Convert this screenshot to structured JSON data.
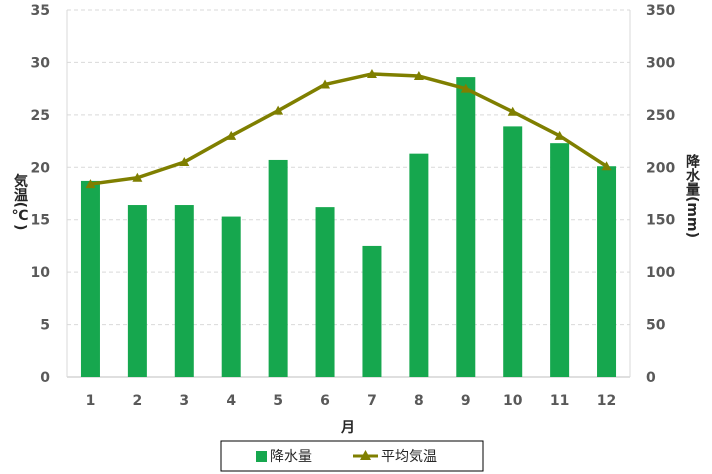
{
  "chart_data": {
    "type": "bar+line",
    "categories": [
      "1",
      "2",
      "3",
      "4",
      "5",
      "6",
      "7",
      "8",
      "9",
      "10",
      "11",
      "12"
    ],
    "xlabel": "月",
    "ylabel_left": "気温(℃)",
    "ylabel_right": "降水量(mm)",
    "ylim_left": [
      0,
      35
    ],
    "ylim_right": [
      0,
      350
    ],
    "yticks_left": [
      "0",
      "5",
      "10",
      "15",
      "20",
      "25",
      "30",
      "35"
    ],
    "yticks_right": [
      "0",
      "50",
      "100",
      "150",
      "200",
      "250",
      "300",
      "350"
    ],
    "grid": true,
    "legend_position": "bottom",
    "series": [
      {
        "name": "降水量",
        "type": "bar",
        "axis": "right",
        "color": "#16a74e",
        "values": [
          187,
          164,
          164,
          153,
          207,
          162,
          125,
          213,
          286,
          239,
          223,
          201
        ]
      },
      {
        "name": "平均気温",
        "type": "line",
        "axis": "left",
        "color": "#7f7f00",
        "marker": "triangle",
        "values": [
          18.4,
          19.0,
          20.5,
          23.0,
          25.4,
          27.9,
          28.9,
          28.7,
          27.5,
          25.3,
          23.0,
          20.1
        ]
      }
    ]
  }
}
